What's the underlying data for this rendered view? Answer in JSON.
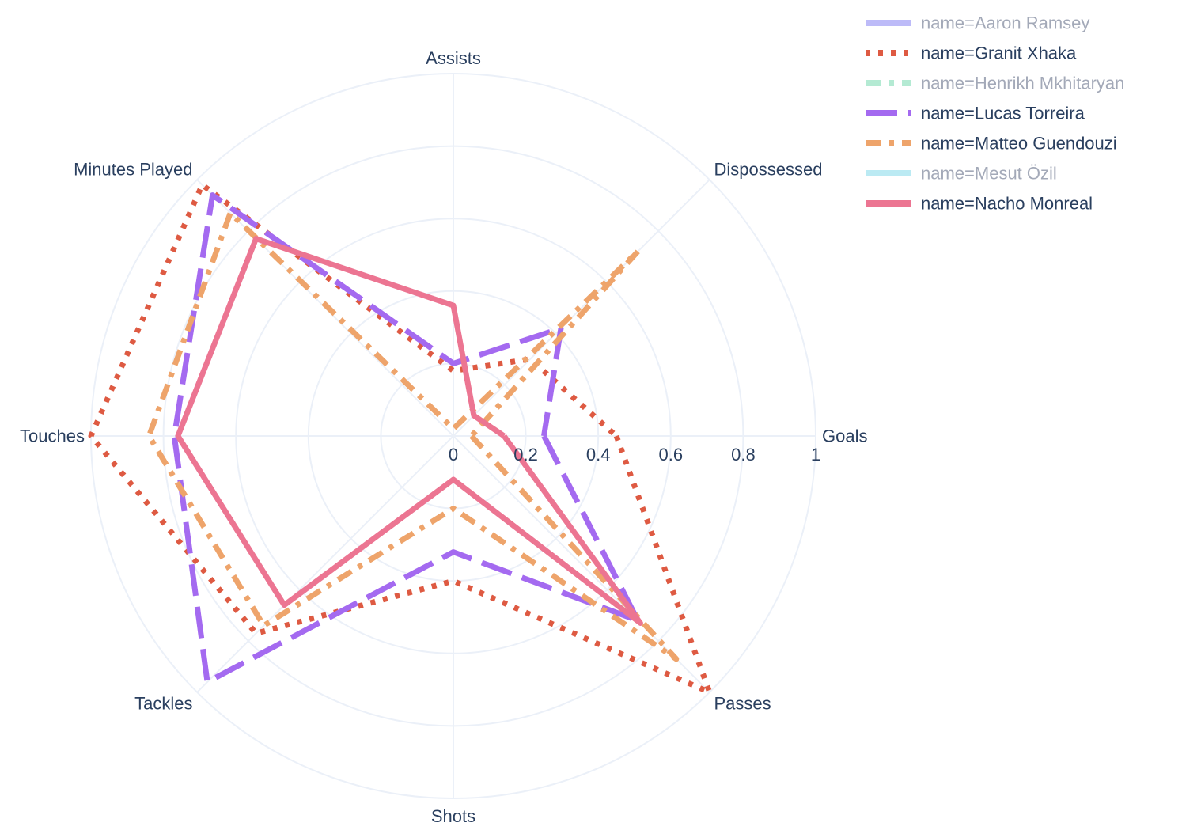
{
  "chart_data": {
    "type": "radar",
    "axes": [
      "Goals",
      "Passes",
      "Shots",
      "Tackles",
      "Touches",
      "Minutes Played",
      "Assists",
      "Dispossessed"
    ],
    "radial_range": [
      0,
      1
    ],
    "radial_ticks": [
      "0",
      "0.2",
      "0.4",
      "0.6",
      "0.8",
      "1"
    ],
    "grid": true,
    "legend_position": "top-right",
    "series": [
      {
        "name": "name=Aaron Ramsey",
        "values": [],
        "color": "#b6b4f8",
        "dash": "solid",
        "visible": false
      },
      {
        "name": "name=Granit Xhaka",
        "values": [
          0.45,
          1.0,
          0.4,
          0.77,
          1.0,
          0.98,
          0.18,
          0.3
        ],
        "color": "#de5a42",
        "dash": "dot",
        "visible": true
      },
      {
        "name": "name=Henrikh Mkhitaryan",
        "values": [],
        "color": "#ace8cf",
        "dash": "dashdot",
        "visible": false
      },
      {
        "name": "name=Lucas Torreira",
        "values": [
          0.25,
          0.72,
          0.32,
          0.96,
          0.77,
          0.94,
          0.2,
          0.42
        ],
        "color": "#a46af0",
        "dash": "longdash",
        "visible": true
      },
      {
        "name": "name=Matteo Guendouzi",
        "values": [
          0.05,
          0.87,
          0.2,
          0.74,
          0.84,
          0.87,
          0.02,
          0.72
        ],
        "color": "#eea46b",
        "dash": "dashdot",
        "visible": true
      },
      {
        "name": "name=Mesut Özil",
        "values": [],
        "color": "#b4e8f2",
        "dash": "solid",
        "visible": false
      },
      {
        "name": "name=Nacho Monreal",
        "values": [
          0.14,
          0.73,
          0.12,
          0.66,
          0.76,
          0.77,
          0.36,
          0.08
        ],
        "color": "#ec7592",
        "dash": "solid",
        "visible": true
      }
    ]
  }
}
